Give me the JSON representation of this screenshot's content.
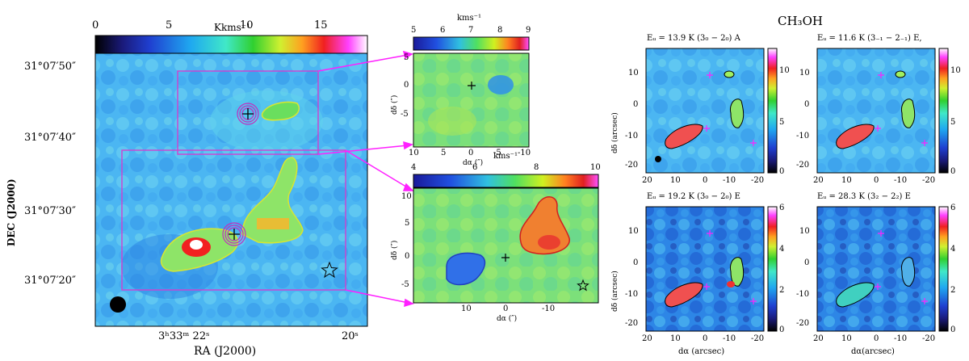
{
  "main_map": {
    "colorbar_unit": "Kkms⁻¹",
    "colorbar_ticks": [
      "0",
      "5",
      "10",
      "15"
    ],
    "y_ticks": [
      "31°07′50″",
      "31°07′40″",
      "31°07′30″",
      "31°07′20″"
    ],
    "x_ticks": [
      "3ʰ33ᵐ 22ˢ",
      "20ˢ"
    ],
    "ylabel": "DEC   (J2000)",
    "xlabel": "RA   (J2000)",
    "star_label": "☆",
    "plus_label": "+"
  },
  "inset_top": {
    "colorbar_unit": "kms⁻¹",
    "colorbar_ticks": [
      "5",
      "6",
      "7",
      "8",
      "9"
    ],
    "y_ticks": [
      "5",
      "0",
      "-5"
    ],
    "x_ticks": [
      "10",
      "5",
      "0",
      "-5",
      "-10"
    ],
    "ylabel": "dδ (″)",
    "xlabel": "dα (″)"
  },
  "inset_bottom": {
    "colorbar_unit": "kms⁻¹",
    "colorbar_ticks": [
      "4",
      "6",
      "8",
      "10"
    ],
    "y_ticks": [
      "10",
      "5",
      "0",
      "-5"
    ],
    "x_ticks": [
      "10",
      "0",
      "-10"
    ],
    "ylabel": "dδ (″)",
    "xlabel": "dα (″)"
  },
  "ch3oh": {
    "title": "CH₃OH",
    "panels": [
      {
        "title": "Eᵤ = 13.9 K (3₀ − 2₀) A",
        "cb_ticks": [
          "10",
          "5",
          "0"
        ]
      },
      {
        "title": "Eᵤ = 11.6 K (3₋₁ − 2₋₁) E,",
        "cb_ticks": [
          "10",
          "5",
          "0"
        ]
      },
      {
        "title": "Eᵤ = 19.2 K (3₀ − 2₀) E",
        "cb_ticks": [
          "6",
          "4",
          "2",
          "0"
        ]
      },
      {
        "title": "Eᵤ = 28.3 K (3₂ − 2₂) E",
        "cb_ticks": [
          "6",
          "4",
          "2",
          "0"
        ]
      }
    ],
    "y_ticks": [
      "10",
      "0",
      "-10",
      "-20"
    ],
    "x_ticks": [
      "20",
      "10",
      "0",
      "-10",
      "-20"
    ],
    "ylabel": "dδ (arcsec)",
    "xlabel_left": "dα (arcsec)",
    "xlabel_right": "dα(arcsec)"
  },
  "chart_data": [
    {
      "type": "heatmap",
      "title": "",
      "colorbar_label": "Kkms⁻¹",
      "clim": [
        0,
        17
      ],
      "xlabel": "RA   (J2000)",
      "ylabel": "DEC   (J2000)"
    },
    {
      "type": "heatmap",
      "title": "",
      "colorbar_label": "kms⁻¹",
      "clim": [
        5,
        9
      ],
      "xlim": [
        10,
        -10
      ],
      "xlabel": "dα (″)",
      "ylabel": "dδ (″)"
    },
    {
      "type": "heatmap",
      "title": "",
      "colorbar_label": "kms⁻¹",
      "clim": [
        4,
        10
      ],
      "xlabel": "dα (″)",
      "ylabel": "dδ (″)"
    },
    {
      "type": "heatmap",
      "title": "Eᵤ = 13.9 K (3₀ − 2₀) A",
      "clim": [
        0,
        12
      ],
      "xlim": [
        20,
        -20
      ],
      "ylim": [
        -22,
        18
      ]
    },
    {
      "type": "heatmap",
      "title": "Eᵤ = 11.6 K (3₋₁ − 2₋₁) E,",
      "clim": [
        0,
        12
      ],
      "xlim": [
        20,
        -20
      ],
      "ylim": [
        -22,
        18
      ]
    },
    {
      "type": "heatmap",
      "title": "Eᵤ = 19.2 K (3₀ − 2₀) E",
      "clim": [
        0,
        6
      ],
      "xlim": [
        20,
        -20
      ],
      "ylim": [
        -22,
        18
      ]
    },
    {
      "type": "heatmap",
      "title": "Eᵤ = 28.3 K (3₂ − 2₂) E",
      "clim": [
        0,
        6
      ],
      "xlim": [
        20,
        -20
      ],
      "ylim": [
        -22,
        18
      ]
    }
  ]
}
